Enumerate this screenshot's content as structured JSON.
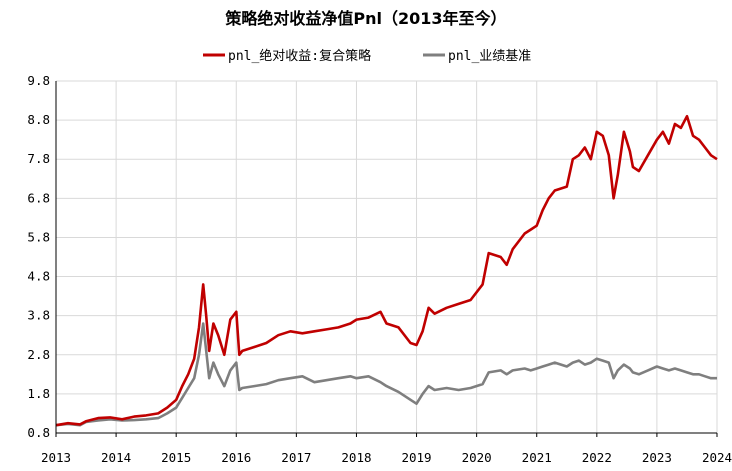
{
  "chart_data": {
    "type": "line",
    "title": "策略绝对收益净值Pnl（2013年至今）",
    "xlabel": "",
    "ylabel": "",
    "xlim": [
      2013,
      2024
    ],
    "ylim": [
      0.8,
      9.8
    ],
    "y_ticks": [
      "0.8",
      "1.8",
      "2.8",
      "3.8",
      "4.8",
      "5.8",
      "6.8",
      "7.8",
      "8.8",
      "9.8"
    ],
    "x_ticks": [
      "2013",
      "2014",
      "2015",
      "2016",
      "2017",
      "2018",
      "2019",
      "2020",
      "2021",
      "2022",
      "2023",
      "2024"
    ],
    "grid": true,
    "legend_position": "top",
    "series": [
      {
        "name": "pnl_绝对收益:复合策略",
        "color": "#c00000",
        "x": [
          2013.0,
          2013.2,
          2013.4,
          2013.5,
          2013.7,
          2013.9,
          2014.1,
          2014.3,
          2014.5,
          2014.7,
          2014.85,
          2015.0,
          2015.1,
          2015.2,
          2015.3,
          2015.38,
          2015.45,
          2015.5,
          2015.55,
          2015.62,
          2015.7,
          2015.8,
          2015.9,
          2016.0,
          2016.05,
          2016.1,
          2016.3,
          2016.5,
          2016.7,
          2016.9,
          2017.1,
          2017.3,
          2017.5,
          2017.7,
          2017.9,
          2018.0,
          2018.2,
          2018.4,
          2018.5,
          2018.7,
          2018.9,
          2019.0,
          2019.1,
          2019.2,
          2019.3,
          2019.5,
          2019.7,
          2019.9,
          2020.1,
          2020.2,
          2020.4,
          2020.5,
          2020.6,
          2020.8,
          2020.9,
          2021.0,
          2021.1,
          2021.2,
          2021.3,
          2021.5,
          2021.6,
          2021.7,
          2021.8,
          2021.9,
          2022.0,
          2022.1,
          2022.2,
          2022.28,
          2022.35,
          2022.45,
          2022.55,
          2022.6,
          2022.7,
          2022.85,
          2023.0,
          2023.1,
          2023.2,
          2023.3,
          2023.4,
          2023.5,
          2023.6,
          2023.7,
          2023.8,
          2023.9,
          2024.0
        ],
        "values": [
          1.0,
          1.05,
          1.02,
          1.1,
          1.18,
          1.2,
          1.15,
          1.22,
          1.25,
          1.3,
          1.45,
          1.65,
          2.0,
          2.3,
          2.7,
          3.5,
          4.6,
          3.8,
          2.9,
          3.6,
          3.3,
          2.8,
          3.7,
          3.9,
          2.8,
          2.9,
          3.0,
          3.1,
          3.3,
          3.4,
          3.35,
          3.4,
          3.45,
          3.5,
          3.6,
          3.7,
          3.75,
          3.9,
          3.6,
          3.5,
          3.1,
          3.05,
          3.4,
          4.0,
          3.85,
          4.0,
          4.1,
          4.2,
          4.6,
          5.4,
          5.3,
          5.1,
          5.5,
          5.9,
          6.0,
          6.1,
          6.5,
          6.8,
          7.0,
          7.1,
          7.8,
          7.9,
          8.1,
          7.8,
          8.5,
          8.4,
          7.9,
          6.8,
          7.4,
          8.5,
          8.0,
          7.6,
          7.5,
          7.9,
          8.3,
          8.5,
          8.2,
          8.7,
          8.6,
          8.9,
          8.4,
          8.3,
          8.1,
          7.9,
          7.8
        ]
      },
      {
        "name": "pnl_业绩基准",
        "color": "#7f7f7f",
        "x": [
          2013.0,
          2013.2,
          2013.4,
          2013.5,
          2013.7,
          2013.9,
          2014.1,
          2014.3,
          2014.5,
          2014.7,
          2014.85,
          2015.0,
          2015.1,
          2015.2,
          2015.3,
          2015.38,
          2015.45,
          2015.5,
          2015.55,
          2015.62,
          2015.7,
          2015.8,
          2015.9,
          2016.0,
          2016.05,
          2016.1,
          2016.3,
          2016.5,
          2016.7,
          2016.9,
          2017.1,
          2017.3,
          2017.5,
          2017.7,
          2017.9,
          2018.0,
          2018.2,
          2018.4,
          2018.5,
          2018.7,
          2018.9,
          2019.0,
          2019.1,
          2019.2,
          2019.3,
          2019.5,
          2019.7,
          2019.9,
          2020.1,
          2020.2,
          2020.4,
          2020.5,
          2020.6,
          2020.8,
          2020.9,
          2021.0,
          2021.1,
          2021.2,
          2021.3,
          2021.5,
          2021.6,
          2021.7,
          2021.8,
          2021.9,
          2022.0,
          2022.1,
          2022.2,
          2022.28,
          2022.35,
          2022.45,
          2022.55,
          2022.6,
          2022.7,
          2022.85,
          2023.0,
          2023.1,
          2023.2,
          2023.3,
          2023.4,
          2023.5,
          2023.6,
          2023.7,
          2023.8,
          2023.9,
          2024.0
        ],
        "values": [
          1.0,
          1.03,
          1.0,
          1.08,
          1.12,
          1.15,
          1.12,
          1.13,
          1.15,
          1.18,
          1.3,
          1.45,
          1.7,
          1.95,
          2.2,
          2.8,
          3.6,
          2.9,
          2.2,
          2.6,
          2.3,
          2.0,
          2.4,
          2.6,
          1.9,
          1.95,
          2.0,
          2.05,
          2.15,
          2.2,
          2.25,
          2.1,
          2.15,
          2.2,
          2.25,
          2.2,
          2.25,
          2.1,
          2.0,
          1.85,
          1.65,
          1.55,
          1.8,
          2.0,
          1.9,
          1.95,
          1.9,
          1.95,
          2.05,
          2.35,
          2.4,
          2.3,
          2.4,
          2.45,
          2.4,
          2.45,
          2.5,
          2.55,
          2.6,
          2.5,
          2.6,
          2.65,
          2.55,
          2.6,
          2.7,
          2.65,
          2.6,
          2.2,
          2.4,
          2.55,
          2.45,
          2.35,
          2.3,
          2.4,
          2.5,
          2.45,
          2.4,
          2.45,
          2.4,
          2.35,
          2.3,
          2.3,
          2.25,
          2.2,
          2.2
        ]
      }
    ]
  }
}
